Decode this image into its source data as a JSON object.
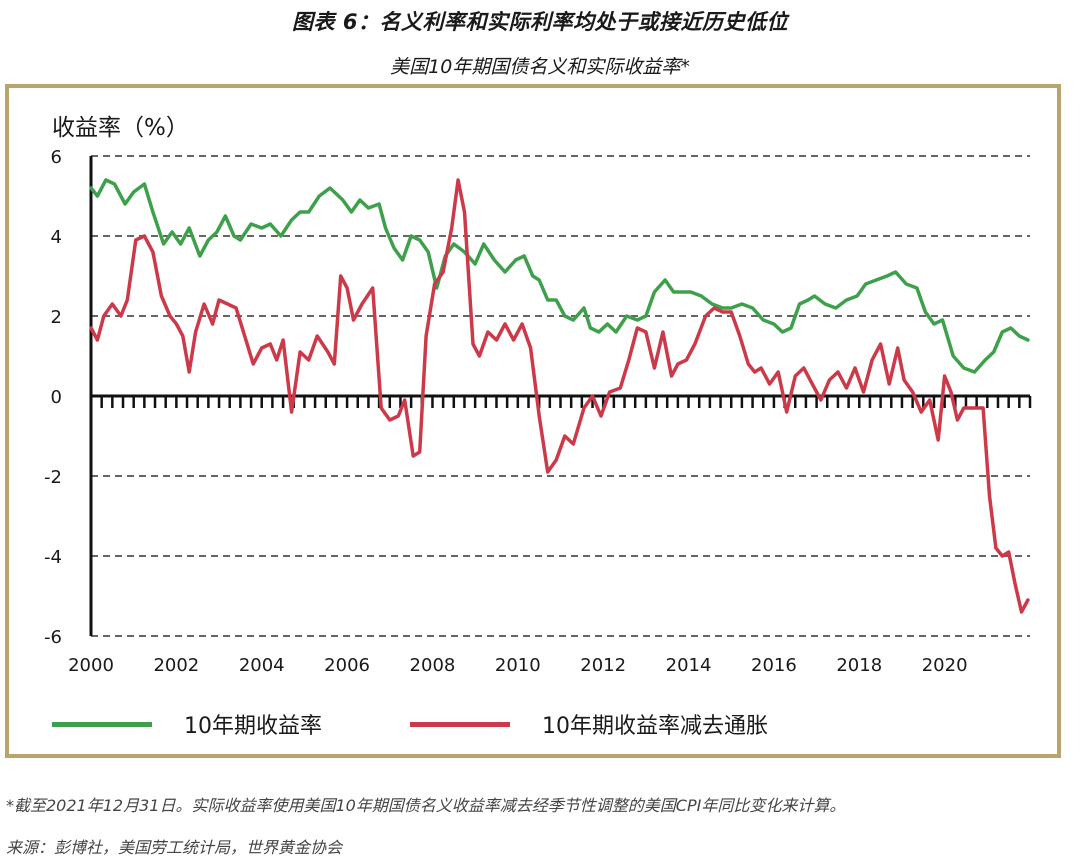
{
  "header": {
    "title": "图表 6：名义利率和实际利率均处于或接近历史低位",
    "subtitle": "美国10年期国债名义和实际收益率*"
  },
  "footer": {
    "footnote": "*截至2021年12月31日。实际收益率使用美国10年期国债名义收益率减去经季节性调整的美国CPI年同比变化来计算。",
    "source": "来源：彭博社，美国劳工统计局，世界黄金协会"
  },
  "colors": {
    "nominal": "#3ea04b",
    "real": "#cc3a4a",
    "frame": "#b9a46c",
    "grid": "#666666"
  },
  "chart_data": {
    "type": "line",
    "ylabel": "收益率（%）",
    "ylim": [
      -6,
      6
    ],
    "yticks": [
      "6",
      "4",
      "2",
      "0",
      "-2",
      "-4",
      "-6"
    ],
    "xlim": [
      2000,
      2022
    ],
    "xticks": [
      "2000",
      "2002",
      "2004",
      "2006",
      "2008",
      "2010",
      "2012",
      "2014",
      "2016",
      "2018",
      "2020"
    ],
    "grid": true,
    "legend_position": "bottom",
    "series": [
      {
        "name": "10年期收益率",
        "x": [
          2000.0,
          2000.15,
          2000.35,
          2000.55,
          2000.8,
          2001.0,
          2001.25,
          2001.45,
          2001.7,
          2001.9,
          2002.1,
          2002.3,
          2002.55,
          2002.75,
          2002.95,
          2003.15,
          2003.35,
          2003.5,
          2003.75,
          2004.0,
          2004.2,
          2004.45,
          2004.7,
          2004.9,
          2005.1,
          2005.35,
          2005.6,
          2005.9,
          2006.1,
          2006.3,
          2006.5,
          2006.75,
          2006.9,
          2007.1,
          2007.3,
          2007.5,
          2007.7,
          2007.9,
          2008.1,
          2008.3,
          2008.5,
          2008.75,
          2009.0,
          2009.2,
          2009.45,
          2009.7,
          2009.95,
          2010.15,
          2010.35,
          2010.5,
          2010.7,
          2010.9,
          2011.1,
          2011.3,
          2011.55,
          2011.7,
          2011.9,
          2012.1,
          2012.3,
          2012.55,
          2012.8,
          2013.0,
          2013.2,
          2013.45,
          2013.65,
          2013.85,
          2014.05,
          2014.3,
          2014.55,
          2014.8,
          2015.0,
          2015.25,
          2015.5,
          2015.75,
          2016.0,
          2016.2,
          2016.4,
          2016.6,
          2016.8,
          2016.95,
          2017.2,
          2017.45,
          2017.7,
          2017.95,
          2018.15,
          2018.4,
          2018.65,
          2018.85,
          2019.1,
          2019.35,
          2019.55,
          2019.75,
          2019.95,
          2020.2,
          2020.45,
          2020.7,
          2020.95,
          2021.15,
          2021.35,
          2021.55,
          2021.75,
          2021.95
        ],
        "values": [
          5.2,
          5.0,
          5.4,
          5.3,
          4.8,
          5.1,
          5.3,
          4.6,
          3.8,
          4.1,
          3.8,
          4.2,
          3.5,
          3.9,
          4.1,
          4.5,
          4.0,
          3.9,
          4.3,
          4.2,
          4.3,
          4.0,
          4.4,
          4.6,
          4.6,
          5.0,
          5.2,
          4.9,
          4.6,
          4.9,
          4.7,
          4.8,
          4.2,
          3.7,
          3.4,
          4.0,
          3.9,
          3.6,
          2.7,
          3.5,
          3.8,
          3.6,
          3.3,
          3.8,
          3.4,
          3.1,
          3.4,
          3.5,
          3.0,
          2.9,
          2.4,
          2.4,
          2.0,
          1.9,
          2.2,
          1.7,
          1.6,
          1.8,
          1.6,
          2.0,
          1.9,
          2.0,
          2.6,
          2.9,
          2.6,
          2.6,
          2.6,
          2.5,
          2.3,
          2.2,
          2.2,
          2.3,
          2.2,
          1.9,
          1.8,
          1.6,
          1.7,
          2.3,
          2.4,
          2.5,
          2.3,
          2.2,
          2.4,
          2.5,
          2.8,
          2.9,
          3.0,
          3.1,
          2.8,
          2.7,
          2.1,
          1.8,
          1.9,
          1.0,
          0.7,
          0.6,
          0.9,
          1.1,
          1.6,
          1.7,
          1.5,
          1.4
        ]
      },
      {
        "name": "10年期收益率减去通胀",
        "x": [
          2000.0,
          2000.15,
          2000.3,
          2000.5,
          2000.7,
          2000.85,
          2001.05,
          2001.25,
          2001.45,
          2001.65,
          2001.85,
          2002.0,
          2002.15,
          2002.3,
          2002.45,
          2002.65,
          2002.85,
          2003.0,
          2003.2,
          2003.4,
          2003.6,
          2003.8,
          2004.0,
          2004.2,
          2004.35,
          2004.5,
          2004.7,
          2004.9,
          2005.1,
          2005.3,
          2005.55,
          2005.7,
          2005.85,
          2006.0,
          2006.15,
          2006.35,
          2006.6,
          2006.8,
          2007.0,
          2007.2,
          2007.35,
          2007.55,
          2007.7,
          2007.85,
          2008.05,
          2008.25,
          2008.45,
          2008.6,
          2008.75,
          2008.95,
          2009.1,
          2009.3,
          2009.5,
          2009.7,
          2009.9,
          2010.1,
          2010.3,
          2010.5,
          2010.7,
          2010.9,
          2011.1,
          2011.3,
          2011.55,
          2011.75,
          2011.95,
          2012.15,
          2012.4,
          2012.6,
          2012.8,
          2013.0,
          2013.2,
          2013.4,
          2013.6,
          2013.75,
          2013.95,
          2014.15,
          2014.4,
          2014.6,
          2014.8,
          2015.0,
          2015.2,
          2015.4,
          2015.55,
          2015.7,
          2015.9,
          2016.1,
          2016.3,
          2016.5,
          2016.7,
          2016.9,
          2017.1,
          2017.3,
          2017.5,
          2017.7,
          2017.9,
          2018.1,
          2018.3,
          2018.5,
          2018.7,
          2018.9,
          2019.05,
          2019.25,
          2019.45,
          2019.65,
          2019.85,
          2020.0,
          2020.15,
          2020.3,
          2020.45,
          2020.6,
          2020.75,
          2020.9,
          2021.05,
          2021.2,
          2021.35,
          2021.5,
          2021.65,
          2021.8,
          2021.95
        ],
        "values": [
          1.7,
          1.4,
          2.0,
          2.3,
          2.0,
          2.4,
          3.9,
          4.0,
          3.6,
          2.5,
          2.0,
          1.8,
          1.5,
          0.6,
          1.6,
          2.3,
          1.8,
          2.4,
          2.3,
          2.2,
          1.5,
          0.8,
          1.2,
          1.3,
          0.9,
          1.4,
          -0.4,
          1.1,
          0.9,
          1.5,
          1.1,
          0.8,
          3.0,
          2.7,
          1.9,
          2.3,
          2.7,
          -0.3,
          -0.6,
          -0.5,
          -0.1,
          -1.5,
          -1.4,
          1.5,
          2.8,
          3.1,
          4.2,
          5.4,
          4.6,
          1.3,
          1.0,
          1.6,
          1.4,
          1.8,
          1.4,
          1.8,
          1.2,
          -0.5,
          -1.9,
          -1.6,
          -1.0,
          -1.2,
          -0.3,
          0.0,
          -0.5,
          0.1,
          0.2,
          0.9,
          1.7,
          1.6,
          0.7,
          1.6,
          0.5,
          0.8,
          0.9,
          1.3,
          2.0,
          2.2,
          2.1,
          2.1,
          1.5,
          0.8,
          0.6,
          0.7,
          0.3,
          0.6,
          -0.4,
          0.5,
          0.7,
          0.3,
          -0.1,
          0.4,
          0.6,
          0.2,
          0.7,
          0.1,
          0.9,
          1.3,
          0.3,
          1.2,
          0.4,
          0.1,
          -0.4,
          -0.1,
          -1.1,
          0.5,
          0.1,
          -0.6,
          -0.3,
          -0.3,
          -0.3,
          -0.3,
          -2.5,
          -3.8,
          -4.0,
          -3.9,
          -4.7,
          -5.4,
          -5.1
        ]
      }
    ]
  }
}
